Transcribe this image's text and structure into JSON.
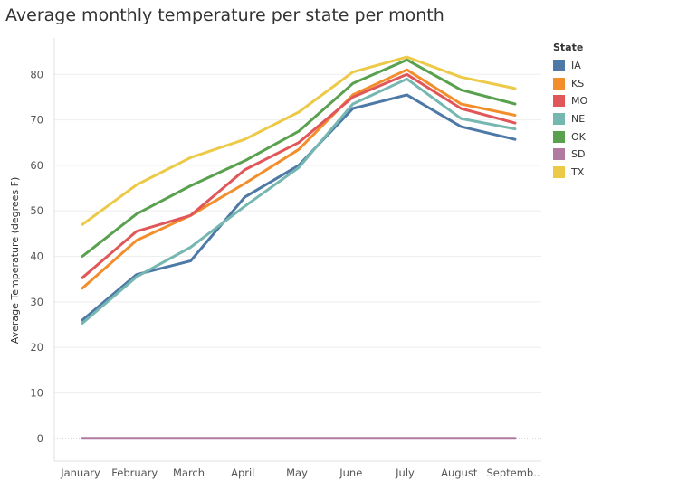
{
  "chart_data": {
    "type": "line",
    "title": "Average monthly temperature per state per month",
    "xlabel": "",
    "ylabel": "Average Temperature (degrees F)",
    "categories": [
      "January",
      "February",
      "March",
      "April",
      "May",
      "June",
      "July",
      "August",
      "Septemb.."
    ],
    "ylim": [
      -5,
      88
    ],
    "yticks": [
      0,
      10,
      20,
      30,
      40,
      50,
      60,
      70,
      80
    ],
    "grid": true,
    "legend_title": "State",
    "legend_position": "right",
    "series": [
      {
        "name": "IA",
        "color": "#4e79a7",
        "values": [
          26,
          36,
          39,
          53,
          60,
          72.5,
          75.5,
          68.5,
          65.7
        ]
      },
      {
        "name": "KS",
        "color": "#f28e2b",
        "values": [
          33,
          43.5,
          49,
          56,
          63.5,
          75.5,
          81,
          73.5,
          71
        ]
      },
      {
        "name": "MO",
        "color": "#e15759",
        "values": [
          35.3,
          45.5,
          49,
          59,
          65,
          75,
          80,
          72.5,
          69.3
        ]
      },
      {
        "name": "NE",
        "color": "#76b7b2",
        "values": [
          25.3,
          35.5,
          42,
          51,
          59.5,
          73.5,
          79,
          70.3,
          68
        ]
      },
      {
        "name": "OK",
        "color": "#59a14f",
        "values": [
          40,
          49.3,
          55.5,
          61,
          67.5,
          78,
          83.2,
          76.6,
          73.5
        ]
      },
      {
        "name": "SD",
        "color": "#b07aa1",
        "values": [
          0,
          0,
          0,
          0,
          0,
          0,
          0,
          0,
          0
        ]
      },
      {
        "name": "TX",
        "color": "#edc948",
        "values": [
          47,
          55.7,
          61.7,
          65.7,
          71.7,
          80.5,
          83.8,
          79.4,
          76.9
        ]
      }
    ]
  }
}
